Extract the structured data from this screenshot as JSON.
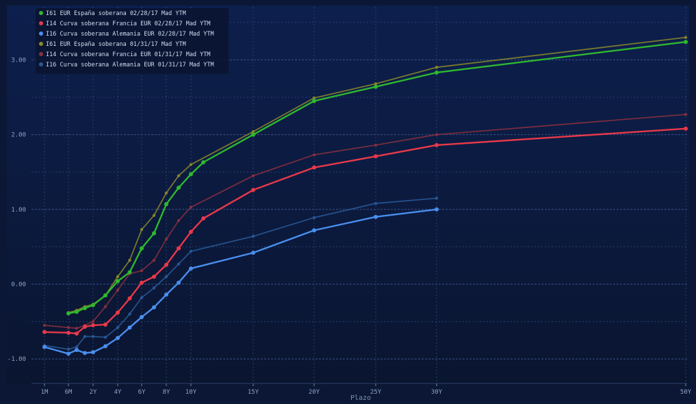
{
  "chart_data": {
    "type": "line",
    "xlabel": "Plazo",
    "ylabel": "",
    "ylim": [
      -1.3,
      3.75
    ],
    "grid": true,
    "legend_position": "top-left",
    "x_ticks": [
      {
        "label": "1M",
        "pos": 0.083
      },
      {
        "label": "6M",
        "pos": 0.5
      },
      {
        "label": "2Y",
        "pos": 2
      },
      {
        "label": "4Y",
        "pos": 4
      },
      {
        "label": "6Y",
        "pos": 6
      },
      {
        "label": "8Y",
        "pos": 8
      },
      {
        "label": "10Y",
        "pos": 10
      },
      {
        "label": "15Y",
        "pos": 15
      },
      {
        "label": "20Y",
        "pos": 20
      },
      {
        "label": "25Y",
        "pos": 25
      },
      {
        "label": "30Y",
        "pos": 30
      },
      {
        "label": "50Y",
        "pos": 50
      }
    ],
    "y_ticks": [
      {
        "label": "3.00",
        "value": 3
      },
      {
        "label": "2.00",
        "value": 2
      },
      {
        "label": "1.00",
        "value": 1
      },
      {
        "label": "0.00",
        "value": 0
      },
      {
        "label": "-1.00",
        "value": -1
      }
    ],
    "series": [
      {
        "name": "I61 EUR España soberana 01/31/17 Mad YTM",
        "color": "#8a8a2a",
        "faded": true,
        "points": [
          [
            0.5,
            -0.38
          ],
          [
            1,
            -0.35
          ],
          [
            1.5,
            -0.3
          ],
          [
            2,
            -0.27
          ],
          [
            3,
            -0.15
          ],
          [
            4,
            0.1
          ],
          [
            5,
            0.32
          ],
          [
            6,
            0.73
          ],
          [
            7,
            0.92
          ],
          [
            8,
            1.22
          ],
          [
            9,
            1.45
          ],
          [
            10,
            1.6
          ],
          [
            15,
            2.04
          ],
          [
            20,
            2.49
          ],
          [
            25,
            2.68
          ],
          [
            30,
            2.9
          ],
          [
            50,
            3.3
          ]
        ]
      },
      {
        "name": "I14 Curva soberana Francia EUR 01/31/17 Mad YTM",
        "color": "#8a3040",
        "faded": true,
        "points": [
          [
            0.083,
            -0.55
          ],
          [
            0.5,
            -0.58
          ],
          [
            1,
            -0.59
          ],
          [
            1.5,
            -0.55
          ],
          [
            2,
            -0.5
          ],
          [
            3,
            -0.3
          ],
          [
            4,
            -0.08
          ],
          [
            5,
            0.14
          ],
          [
            6,
            0.18
          ],
          [
            7,
            0.32
          ],
          [
            8,
            0.6
          ],
          [
            9,
            0.85
          ],
          [
            10,
            1.03
          ],
          [
            15,
            1.45
          ],
          [
            20,
            1.73
          ],
          [
            25,
            1.86
          ],
          [
            30,
            2.0
          ],
          [
            50,
            2.27
          ]
        ]
      },
      {
        "name": "I16 Curva soberana Alemania EUR 01/31/17 Mad YTM",
        "color": "#2a5a9a",
        "faded": true,
        "points": [
          [
            0.083,
            -0.82
          ],
          [
            0.5,
            -0.87
          ],
          [
            1,
            -0.84
          ],
          [
            1.5,
            -0.7
          ],
          [
            2,
            -0.7
          ],
          [
            3,
            -0.71
          ],
          [
            4,
            -0.58
          ],
          [
            5,
            -0.4
          ],
          [
            6,
            -0.18
          ],
          [
            7,
            -0.05
          ],
          [
            8,
            0.1
          ],
          [
            9,
            0.27
          ],
          [
            10,
            0.44
          ],
          [
            15,
            0.64
          ],
          [
            20,
            0.89
          ],
          [
            25,
            1.08
          ],
          [
            30,
            1.15
          ]
        ]
      },
      {
        "name": "I61 EUR España soberana 02/28/17 Mad YTM",
        "color": "#2fb82f",
        "faded": false,
        "points": [
          [
            0.5,
            -0.39
          ],
          [
            1,
            -0.37
          ],
          [
            1.5,
            -0.32
          ],
          [
            2,
            -0.28
          ],
          [
            3,
            -0.15
          ],
          [
            4,
            0.04
          ],
          [
            5,
            0.16
          ],
          [
            6,
            0.48
          ],
          [
            7,
            0.68
          ],
          [
            8,
            1.07
          ],
          [
            9,
            1.29
          ],
          [
            10,
            1.47
          ],
          [
            11,
            1.63
          ],
          [
            15,
            2.0
          ],
          [
            20,
            2.45
          ],
          [
            25,
            2.64
          ],
          [
            30,
            2.83
          ],
          [
            50,
            3.24
          ]
        ]
      },
      {
        "name": "I14 Curva soberana Francia EUR 02/28/17 Mad YTM",
        "color": "#e8394a",
        "faded": false,
        "points": [
          [
            0.083,
            -0.64
          ],
          [
            0.5,
            -0.65
          ],
          [
            1,
            -0.66
          ],
          [
            1.5,
            -0.57
          ],
          [
            2,
            -0.55
          ],
          [
            3,
            -0.54
          ],
          [
            4,
            -0.38
          ],
          [
            5,
            -0.19
          ],
          [
            6,
            0.02
          ],
          [
            7,
            0.1
          ],
          [
            8,
            0.26
          ],
          [
            9,
            0.48
          ],
          [
            10,
            0.7
          ],
          [
            11,
            0.88
          ],
          [
            15,
            1.26
          ],
          [
            20,
            1.56
          ],
          [
            25,
            1.71
          ],
          [
            30,
            1.86
          ],
          [
            50,
            2.08
          ]
        ]
      },
      {
        "name": "I16 Curva soberana Alemania EUR 02/28/17 Mad YTM",
        "color": "#4a8ef0",
        "faded": false,
        "points": [
          [
            0.083,
            -0.84
          ],
          [
            0.5,
            -0.93
          ],
          [
            1,
            -0.88
          ],
          [
            1.5,
            -0.92
          ],
          [
            2,
            -0.91
          ],
          [
            3,
            -0.83
          ],
          [
            4,
            -0.72
          ],
          [
            5,
            -0.58
          ],
          [
            6,
            -0.44
          ],
          [
            7,
            -0.31
          ],
          [
            8,
            -0.14
          ],
          [
            9,
            0.02
          ],
          [
            10,
            0.21
          ],
          [
            15,
            0.42
          ],
          [
            20,
            0.72
          ],
          [
            25,
            0.9
          ],
          [
            30,
            1.0
          ]
        ]
      }
    ]
  }
}
